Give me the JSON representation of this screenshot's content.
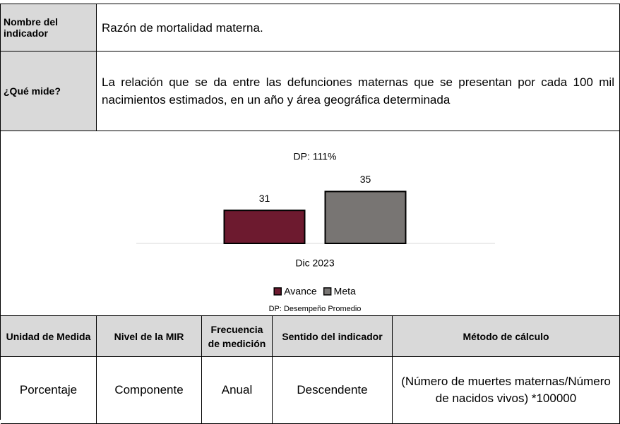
{
  "indicator": {
    "name_label": "Nombre del indicador",
    "name": "Razón de mortalidad materna.",
    "measures_label": "¿Qué mide?",
    "measures": "La relación que se da entre las defunciones maternas que se presentan por cada 100 mil nacimientos estimados, en un año y área geográfica determinada"
  },
  "chart_data": {
    "type": "bar",
    "title": "DP: 111%",
    "categories": [
      "Dic 2023"
    ],
    "series": [
      {
        "name": "Avance",
        "color": "#6d1a2f",
        "values": [
          31
        ]
      },
      {
        "name": "Meta",
        "color": "#787573",
        "values": [
          35
        ]
      }
    ],
    "ylim": [
      24,
      40
    ],
    "legend": "bottom",
    "note": "DP: Desempeño Promedio"
  },
  "table": {
    "headers": [
      "Unidad de Medida",
      "Nivel de la MIR",
      "Frecuencia de medición",
      "Sentido del indicador",
      "Método de cálculo"
    ],
    "rows": [
      [
        "Porcentaje",
        "Componente",
        "Anual",
        "Descendente",
        "(Número de muertes maternas/Número de nacidos vivos) *100000"
      ]
    ]
  }
}
